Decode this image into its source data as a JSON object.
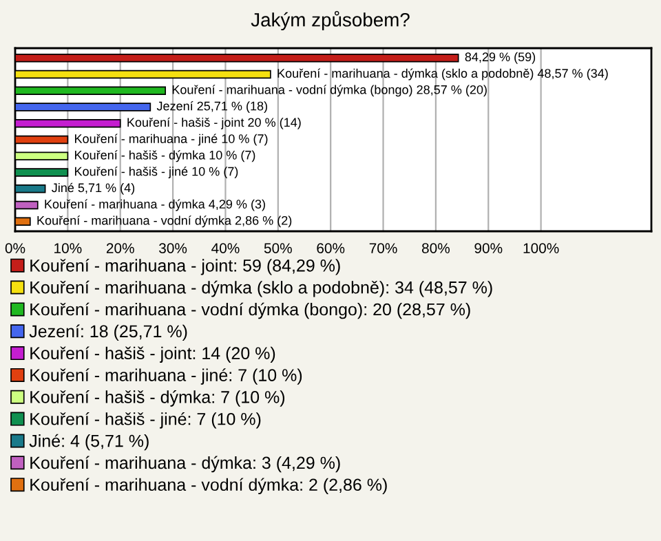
{
  "chart_data": {
    "type": "bar",
    "orientation": "horizontal",
    "title": "Jakým způsobem?",
    "categories": [
      null,
      null,
      null,
      null,
      null,
      null,
      null,
      null,
      null,
      null,
      null
    ],
    "series": [
      {
        "name": "Kouření - marihuana - joint: 59 (84,29 %)",
        "color": "#c41e1a",
        "values": [
          84.29,
          null,
          null,
          null,
          null,
          null,
          null,
          null,
          null,
          null,
          null
        ],
        "value_labels": [
          "84,29 % (59)",
          null,
          null,
          null,
          null,
          null,
          null,
          null,
          null,
          null,
          null
        ]
      },
      {
        "name": "Kouření - marihuana - dýmka (sklo a podobně): 34 (48,57 %)",
        "color": "#f5e010",
        "values": [
          null,
          48.57,
          null,
          null,
          null,
          null,
          null,
          null,
          null,
          null,
          null
        ],
        "value_labels": [
          null,
          "Kouření - marihuana - dýmka (sklo a podobně) 48,57 % (34)",
          null,
          null,
          null,
          null,
          null,
          null,
          null,
          null,
          null
        ]
      },
      {
        "name": "Kouření - marihuana - vodní dýmka (bongo): 20 (28,57 %)",
        "color": "#20b820",
        "values": [
          null,
          null,
          28.57,
          null,
          null,
          null,
          null,
          null,
          null,
          null,
          null
        ],
        "value_labels": [
          null,
          null,
          "Kouření - marihuana - vodní dýmka (bongo) 28,57 % (20)",
          null,
          null,
          null,
          null,
          null,
          null,
          null,
          null
        ]
      },
      {
        "name": "Jezení: 18 (25,71 %)",
        "color": "#4466ee",
        "values": [
          null,
          null,
          null,
          25.71,
          null,
          null,
          null,
          null,
          null,
          null,
          null
        ],
        "value_labels": [
          null,
          null,
          null,
          "Jezení 25,71 % (18)",
          null,
          null,
          null,
          null,
          null,
          null,
          null
        ]
      },
      {
        "name": "Kouření - hašiš - joint: 14 (20 %)",
        "color": "#c41ed0",
        "values": [
          null,
          null,
          null,
          null,
          20,
          null,
          null,
          null,
          null,
          null,
          null
        ],
        "value_labels": [
          null,
          null,
          null,
          null,
          "Kouření - hašiš - joint 20 % (14)",
          null,
          null,
          null,
          null,
          null,
          null
        ]
      },
      {
        "name": "Kouření - marihuana - jiné: 7 (10 %)",
        "color": "#e04010",
        "values": [
          null,
          null,
          null,
          null,
          null,
          10,
          null,
          null,
          null,
          null,
          null
        ],
        "value_labels": [
          null,
          null,
          null,
          null,
          null,
          "Kouření - marihuana - jiné 10 % (7)",
          null,
          null,
          null,
          null,
          null
        ]
      },
      {
        "name": "Kouření - hašiš - dýmka: 7 (10 %)",
        "color": "#ccff80",
        "values": [
          null,
          null,
          null,
          null,
          null,
          null,
          10,
          null,
          null,
          null,
          null
        ],
        "value_labels": [
          null,
          null,
          null,
          null,
          null,
          null,
          "Kouření - hašiš - dýmka 10 % (7)",
          null,
          null,
          null,
          null
        ]
      },
      {
        "name": "Kouření - hašiš - jiné: 7 (10 %)",
        "color": "#109050",
        "values": [
          null,
          null,
          null,
          null,
          null,
          null,
          null,
          10,
          null,
          null,
          null
        ],
        "value_labels": [
          null,
          null,
          null,
          null,
          null,
          null,
          null,
          "Kouření - hašiš - jiné 10 % (7)",
          null,
          null,
          null
        ]
      },
      {
        "name": "Jiné: 4 (5,71 %)",
        "color": "#1a7a8a",
        "values": [
          null,
          null,
          null,
          null,
          null,
          null,
          null,
          null,
          5.71,
          null,
          null
        ],
        "value_labels": [
          null,
          null,
          null,
          null,
          null,
          null,
          null,
          null,
          "Jiné 5,71 % (4)",
          null,
          null
        ]
      },
      {
        "name": "Kouření - marihuana - dýmka: 3 (4,29 %)",
        "color": "#c060c0",
        "values": [
          null,
          null,
          null,
          null,
          null,
          null,
          null,
          null,
          null,
          4.29,
          null
        ],
        "value_labels": [
          null,
          null,
          null,
          null,
          null,
          null,
          null,
          null,
          null,
          "Kouření - marihuana - dýmka 4,29 % (3)",
          null
        ]
      },
      {
        "name": "Kouření - marihuana - vodní dýmka: 2 (2,86 %)",
        "color": "#e07010",
        "values": [
          null,
          null,
          null,
          null,
          null,
          null,
          null,
          null,
          null,
          null,
          2.86
        ],
        "value_labels": [
          null,
          null,
          null,
          null,
          null,
          null,
          null,
          null,
          null,
          null,
          "Kouření - marihuana - vodní dýmka 2,86 % (2)"
        ]
      }
    ],
    "xlim": [
      0,
      121
    ],
    "xticks": [
      {
        "value": 0,
        "label": "0%"
      },
      {
        "value": 10,
        "label": "10%"
      },
      {
        "value": 20,
        "label": "20%"
      },
      {
        "value": 30,
        "label": "30%"
      },
      {
        "value": 40,
        "label": "40%"
      },
      {
        "value": 50,
        "label": "50%"
      },
      {
        "value": 60,
        "label": "60%"
      },
      {
        "value": 70,
        "label": "70%"
      },
      {
        "value": 80,
        "label": "80%"
      },
      {
        "value": 90,
        "label": "90%"
      },
      {
        "value": 100,
        "label": "100%"
      }
    ],
    "grid": "x",
    "legend": "bottom"
  }
}
